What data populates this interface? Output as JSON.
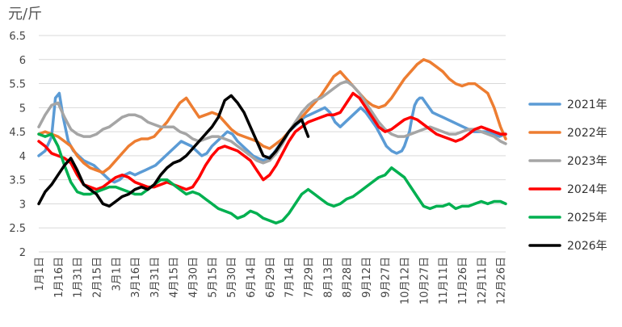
{
  "chart_data": {
    "type": "line",
    "title": "",
    "ylabel": "元/斤",
    "xlabel": "",
    "ylim": [
      2,
      6.5
    ],
    "yticks": [
      "6.5",
      "6",
      "5.5",
      "5",
      "4.5",
      "4",
      "3.5",
      "3",
      "2.5",
      "2"
    ],
    "xticks": [
      "1月1日",
      "1月16日",
      "1月31日",
      "2月15日",
      "3月1日",
      "3月16日",
      "3月31日",
      "4月15日",
      "4月30日",
      "5月15日",
      "5月30日",
      "6月14日",
      "6月29日",
      "7月14日",
      "7月29日",
      "8月13日",
      "8月28日",
      "9月12日",
      "9月27日",
      "10月12日",
      "10月27日",
      "11月11日",
      "11月26日",
      "12月11日",
      "12月26日"
    ],
    "grid": "horizontal",
    "legend_position": "right",
    "series": [
      {
        "name": "2021年",
        "color": "#5B9BD5",
        "x": [
          1,
          6,
          11,
          14,
          17,
          20,
          24,
          28,
          32,
          36,
          40,
          44,
          48,
          52,
          56,
          60,
          64,
          68,
          72,
          76,
          80,
          84,
          88,
          92,
          96,
          100,
          104,
          108,
          112,
          116,
          120,
          124,
          128,
          132,
          136,
          140,
          144,
          148,
          152,
          156,
          160,
          164,
          168,
          172,
          176,
          180,
          184,
          188,
          192,
          196,
          200,
          204,
          208,
          212,
          216,
          220,
          224,
          228,
          232,
          236,
          240,
          244,
          248,
          252,
          256,
          260,
          264,
          268,
          272,
          276,
          280,
          284,
          286,
          288,
          290,
          292,
          294,
          296,
          298,
          300,
          304,
          308,
          312,
          316,
          320,
          324,
          328,
          332,
          336,
          340,
          344,
          348,
          352,
          356,
          360,
          365
        ],
        "y": [
          4.0,
          4.1,
          4.4,
          5.2,
          5.3,
          4.8,
          4.3,
          4.1,
          4.0,
          3.9,
          3.85,
          3.8,
          3.7,
          3.6,
          3.5,
          3.45,
          3.5,
          3.6,
          3.65,
          3.6,
          3.65,
          3.7,
          3.75,
          3.8,
          3.9,
          4.0,
          4.1,
          4.2,
          4.3,
          4.25,
          4.2,
          4.1,
          4.0,
          4.05,
          4.2,
          4.3,
          4.4,
          4.5,
          4.45,
          4.3,
          4.2,
          4.1,
          4.0,
          3.95,
          3.9,
          3.95,
          4.05,
          4.2,
          4.35,
          4.5,
          4.6,
          4.7,
          4.8,
          4.85,
          4.9,
          4.95,
          5.0,
          4.9,
          4.7,
          4.6,
          4.7,
          4.8,
          4.9,
          5.0,
          4.9,
          4.75,
          4.6,
          4.4,
          4.2,
          4.1,
          4.05,
          4.1,
          4.2,
          4.35,
          4.5,
          4.8,
          5.05,
          5.15,
          5.2,
          5.2,
          5.05,
          4.9,
          4.85,
          4.8,
          4.75,
          4.7,
          4.65,
          4.6,
          4.55,
          4.5,
          4.5,
          4.5,
          4.5,
          4.45,
          4.4,
          4.45
        ]
      },
      {
        "name": "2022年",
        "color": "#ED7D31",
        "x": [
          1,
          6,
          11,
          16,
          21,
          26,
          31,
          36,
          41,
          46,
          51,
          56,
          61,
          66,
          71,
          76,
          81,
          86,
          91,
          96,
          101,
          106,
          111,
          116,
          121,
          126,
          131,
          136,
          141,
          146,
          151,
          156,
          161,
          166,
          171,
          176,
          181,
          186,
          191,
          196,
          201,
          206,
          211,
          216,
          221,
          226,
          231,
          236,
          241,
          246,
          251,
          256,
          261,
          266,
          271,
          276,
          281,
          286,
          291,
          296,
          301,
          306,
          311,
          316,
          321,
          326,
          331,
          336,
          341,
          346,
          351,
          356,
          361,
          365
        ],
        "y": [
          4.45,
          4.5,
          4.45,
          4.4,
          4.3,
          4.2,
          4.0,
          3.85,
          3.75,
          3.7,
          3.65,
          3.75,
          3.9,
          4.05,
          4.2,
          4.3,
          4.35,
          4.35,
          4.4,
          4.55,
          4.7,
          4.9,
          5.1,
          5.2,
          5.0,
          4.8,
          4.85,
          4.9,
          4.85,
          4.7,
          4.55,
          4.45,
          4.4,
          4.35,
          4.3,
          4.2,
          4.15,
          4.25,
          4.35,
          4.5,
          4.65,
          4.8,
          4.95,
          5.1,
          5.25,
          5.45,
          5.65,
          5.75,
          5.6,
          5.45,
          5.3,
          5.15,
          5.05,
          5.0,
          5.05,
          5.2,
          5.4,
          5.6,
          5.75,
          5.9,
          6.0,
          5.95,
          5.85,
          5.75,
          5.6,
          5.5,
          5.45,
          5.5,
          5.5,
          5.4,
          5.3,
          5.0,
          4.6,
          4.35
        ]
      },
      {
        "name": "2023年",
        "color": "#A5A5A5",
        "x": [
          1,
          6,
          11,
          16,
          21,
          26,
          31,
          36,
          41,
          46,
          51,
          56,
          61,
          66,
          71,
          76,
          81,
          86,
          91,
          96,
          101,
          106,
          111,
          116,
          121,
          126,
          131,
          136,
          141,
          146,
          151,
          156,
          161,
          166,
          171,
          176,
          181,
          186,
          191,
          196,
          201,
          206,
          211,
          216,
          221,
          226,
          231,
          236,
          241,
          246,
          251,
          256,
          261,
          266,
          271,
          276,
          281,
          286,
          291,
          296,
          301,
          306,
          311,
          316,
          321,
          326,
          331,
          336,
          341,
          346,
          351,
          356,
          361,
          365
        ],
        "y": [
          4.6,
          4.85,
          5.05,
          5.1,
          4.8,
          4.55,
          4.45,
          4.4,
          4.4,
          4.45,
          4.55,
          4.6,
          4.7,
          4.8,
          4.85,
          4.85,
          4.8,
          4.7,
          4.65,
          4.6,
          4.6,
          4.6,
          4.5,
          4.45,
          4.35,
          4.3,
          4.35,
          4.4,
          4.4,
          4.35,
          4.3,
          4.2,
          4.1,
          4.0,
          3.9,
          3.85,
          3.9,
          4.05,
          4.25,
          4.5,
          4.7,
          4.9,
          5.05,
          5.15,
          5.2,
          5.3,
          5.4,
          5.5,
          5.55,
          5.45,
          5.3,
          5.1,
          4.9,
          4.7,
          4.55,
          4.45,
          4.4,
          4.4,
          4.45,
          4.5,
          4.55,
          4.6,
          4.55,
          4.5,
          4.45,
          4.45,
          4.5,
          4.55,
          4.55,
          4.5,
          4.45,
          4.4,
          4.3,
          4.25
        ]
      },
      {
        "name": "2024年",
        "color": "#FF0000",
        "x": [
          1,
          6,
          11,
          16,
          21,
          26,
          31,
          36,
          41,
          46,
          51,
          56,
          61,
          66,
          71,
          76,
          81,
          86,
          91,
          96,
          101,
          106,
          111,
          116,
          121,
          126,
          131,
          136,
          141,
          146,
          151,
          156,
          161,
          166,
          171,
          176,
          181,
          186,
          191,
          196,
          201,
          206,
          211,
          216,
          221,
          226,
          231,
          236,
          241,
          246,
          251,
          256,
          261,
          266,
          271,
          276,
          281,
          286,
          291,
          296,
          301,
          306,
          311,
          316,
          321,
          326,
          331,
          336,
          341,
          346,
          351,
          356,
          361,
          365
        ],
        "y": [
          4.3,
          4.2,
          4.05,
          4.0,
          3.95,
          3.85,
          3.6,
          3.4,
          3.35,
          3.3,
          3.35,
          3.45,
          3.55,
          3.6,
          3.55,
          3.45,
          3.4,
          3.35,
          3.35,
          3.4,
          3.45,
          3.4,
          3.35,
          3.3,
          3.35,
          3.55,
          3.8,
          4.0,
          4.15,
          4.2,
          4.15,
          4.1,
          4.0,
          3.9,
          3.7,
          3.5,
          3.6,
          3.8,
          4.05,
          4.3,
          4.5,
          4.6,
          4.7,
          4.75,
          4.8,
          4.85,
          4.85,
          4.9,
          5.1,
          5.3,
          5.2,
          5.0,
          4.8,
          4.6,
          4.5,
          4.55,
          4.65,
          4.75,
          4.8,
          4.75,
          4.65,
          4.55,
          4.45,
          4.4,
          4.35,
          4.3,
          4.35,
          4.45,
          4.55,
          4.6,
          4.55,
          4.5,
          4.45,
          4.45
        ]
      },
      {
        "name": "2025年",
        "color": "#00B050",
        "x": [
          1,
          6,
          11,
          16,
          21,
          26,
          31,
          36,
          41,
          46,
          51,
          56,
          61,
          66,
          71,
          76,
          81,
          86,
          91,
          96,
          101,
          106,
          111,
          116,
          121,
          126,
          131,
          136,
          141,
          146,
          151,
          156,
          161,
          166,
          171,
          176,
          181,
          186,
          191,
          196,
          201,
          206,
          211,
          216,
          221,
          226,
          231,
          236,
          241,
          246,
          251,
          256,
          261,
          266,
          271,
          276,
          281,
          286,
          291,
          296,
          301,
          306,
          311,
          316,
          321,
          326,
          331,
          336,
          341,
          346,
          351,
          356,
          361,
          365
        ],
        "y": [
          4.45,
          4.4,
          4.45,
          4.2,
          3.8,
          3.45,
          3.25,
          3.2,
          3.2,
          3.25,
          3.3,
          3.35,
          3.35,
          3.3,
          3.25,
          3.2,
          3.2,
          3.3,
          3.4,
          3.5,
          3.5,
          3.4,
          3.3,
          3.2,
          3.25,
          3.2,
          3.1,
          3.0,
          2.9,
          2.85,
          2.8,
          2.7,
          2.75,
          2.85,
          2.8,
          2.7,
          2.65,
          2.6,
          2.65,
          2.8,
          3.0,
          3.2,
          3.3,
          3.2,
          3.1,
          3.0,
          2.95,
          3.0,
          3.1,
          3.15,
          3.25,
          3.35,
          3.45,
          3.55,
          3.6,
          3.75,
          3.65,
          3.55,
          3.35,
          3.15,
          2.95,
          2.9,
          2.95,
          2.95,
          3.0,
          2.9,
          2.95,
          2.95,
          3.0,
          3.05,
          3.0,
          3.05,
          3.05,
          3.0
        ]
      },
      {
        "name": "2026年",
        "color": "#000000",
        "x": [
          1,
          6,
          11,
          16,
          21,
          26,
          31,
          36,
          41,
          46,
          51,
          56,
          61,
          66,
          71,
          76,
          81,
          86,
          91,
          96,
          101,
          106,
          111,
          116,
          121,
          126,
          131,
          136,
          141,
          146,
          151,
          156,
          161,
          166,
          171,
          176,
          181,
          186,
          191,
          196,
          201,
          206,
          211
        ],
        "y": [
          3.0,
          3.25,
          3.4,
          3.6,
          3.8,
          3.95,
          3.7,
          3.4,
          3.3,
          3.2,
          3.0,
          2.95,
          3.05,
          3.15,
          3.2,
          3.3,
          3.35,
          3.3,
          3.4,
          3.6,
          3.75,
          3.85,
          3.9,
          4.0,
          4.15,
          4.3,
          4.45,
          4.6,
          4.8,
          5.15,
          5.25,
          5.1,
          4.9,
          4.6,
          4.3,
          4.0,
          3.95,
          4.1,
          4.3,
          4.5,
          4.65,
          4.75,
          4.4
        ]
      }
    ]
  }
}
